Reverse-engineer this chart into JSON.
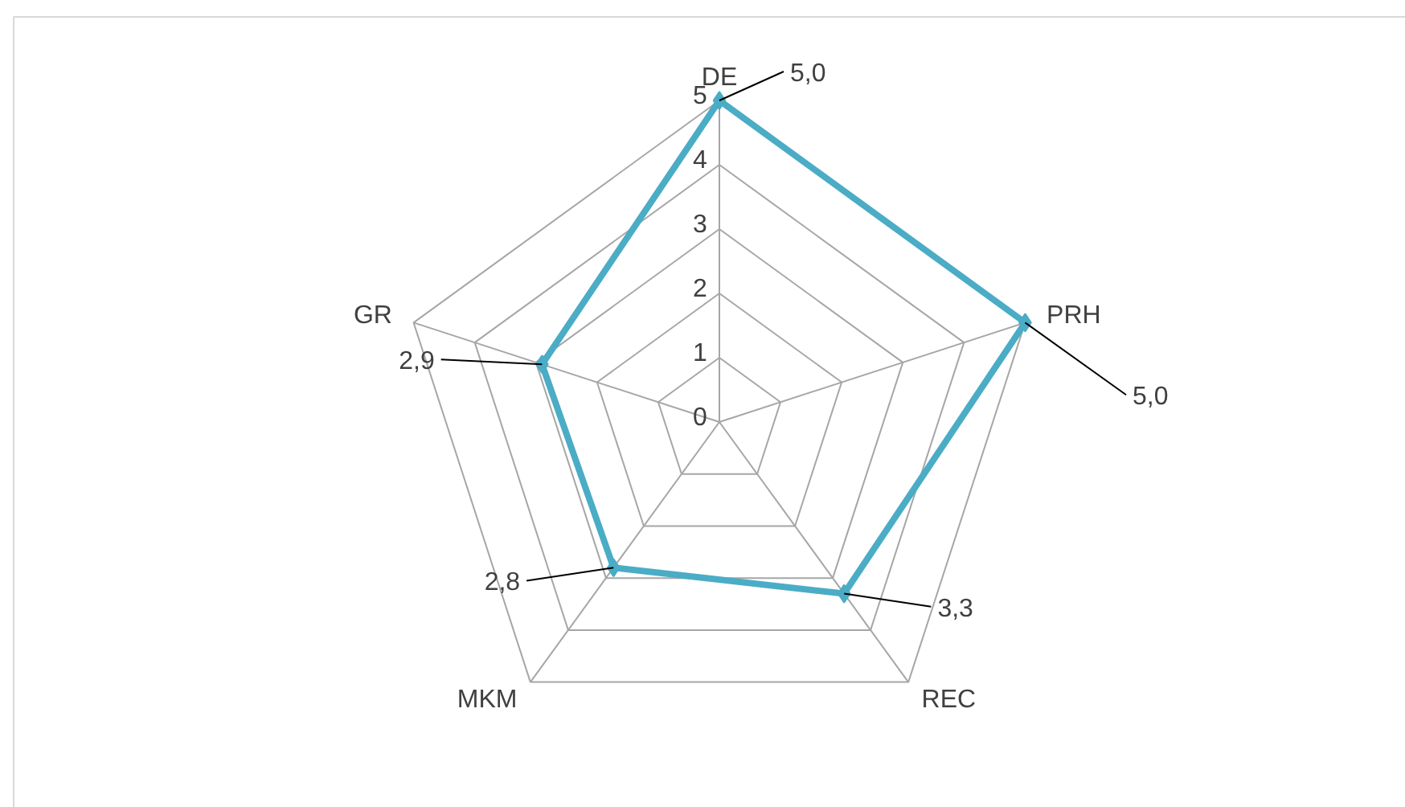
{
  "chart_data": {
    "type": "radar",
    "categories": [
      "DE",
      "PRH",
      "REC",
      "MKM",
      "GR"
    ],
    "series": [
      {
        "color": "#4bacc6",
        "values": [
          5.0,
          5.0,
          3.3,
          2.8,
          2.9
        ],
        "value_labels": [
          "5,0",
          "5,0",
          "3,3",
          "2,8",
          "2,9"
        ]
      }
    ],
    "ylim": [
      0,
      5
    ],
    "yticks": [
      0,
      1,
      2,
      3,
      4,
      5
    ],
    "grid": true,
    "marker": "diamond"
  }
}
